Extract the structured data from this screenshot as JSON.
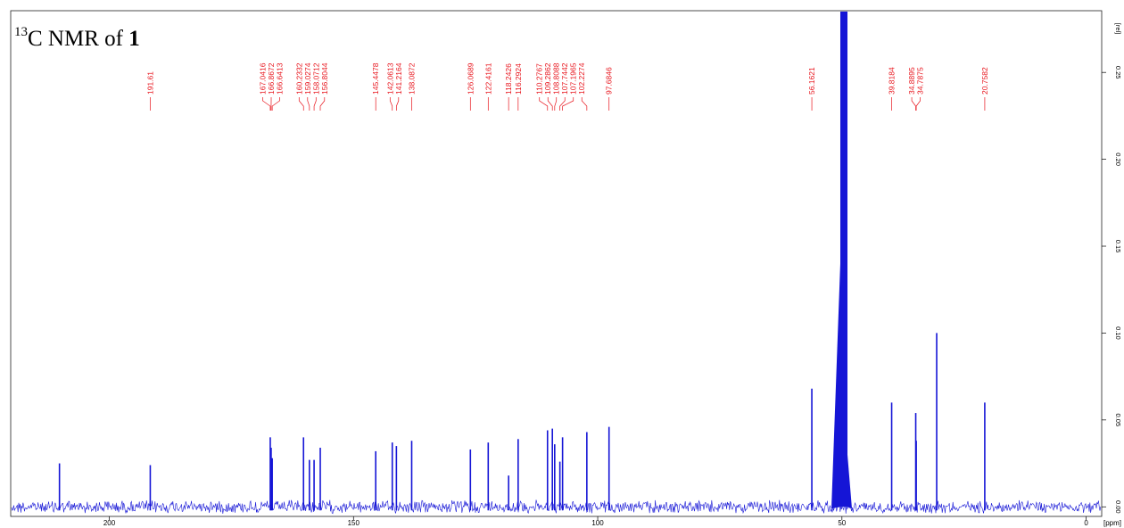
{
  "title": {
    "sup": "13",
    "main": "C NMR of ",
    "compound": "1"
  },
  "colors": {
    "spectrum": "#1515d6",
    "labels": "#e8141c",
    "axis": "#000000"
  },
  "chart_data": {
    "type": "line",
    "title": "13C NMR of 1",
    "xlabel": "[ppm]",
    "ylabel": "[rel]",
    "x_reversed": true,
    "xlim": [
      220,
      -3
    ],
    "ylim": [
      -0.005,
      0.285
    ],
    "x_ticks": [
      200,
      150,
      100,
      50,
      0
    ],
    "y_ticks": [
      0.0,
      0.05,
      0.1,
      0.15,
      0.2,
      0.25
    ],
    "y_tick_labels": [
      "0.00",
      "0.05",
      "0.10",
      "0.15",
      "0.20",
      "0.25"
    ],
    "grid": false,
    "peaks": [
      {
        "shift": 210.2,
        "height": 0.025
      },
      {
        "shift": 191.61,
        "height": 0.024,
        "label": "191.61"
      },
      {
        "shift": 167.0416,
        "height": 0.04,
        "label": "167.0416"
      },
      {
        "shift": 166.8672,
        "height": 0.034,
        "label": "166.8672"
      },
      {
        "shift": 166.6413,
        "height": 0.028,
        "label": "166.6413"
      },
      {
        "shift": 160.2332,
        "height": 0.04,
        "label": "160.2332"
      },
      {
        "shift": 159.0274,
        "height": 0.027,
        "label": "159.0274"
      },
      {
        "shift": 158.0712,
        "height": 0.027,
        "label": "158.0712"
      },
      {
        "shift": 156.8044,
        "height": 0.034,
        "label": "156.8044"
      },
      {
        "shift": 145.4478,
        "height": 0.032,
        "label": "145.4478"
      },
      {
        "shift": 142.0613,
        "height": 0.037,
        "label": "142.0613"
      },
      {
        "shift": 141.2164,
        "height": 0.035,
        "label": "141.2164"
      },
      {
        "shift": 138.0872,
        "height": 0.038,
        "label": "138.0872"
      },
      {
        "shift": 126.0689,
        "height": 0.033,
        "label": "126.0689"
      },
      {
        "shift": 122.4161,
        "height": 0.037,
        "label": "122.4161"
      },
      {
        "shift": 118.2426,
        "height": 0.018,
        "label": "118.2426"
      },
      {
        "shift": 116.2924,
        "height": 0.039,
        "label": "116.2924"
      },
      {
        "shift": 110.2767,
        "height": 0.044,
        "label": "110.2767"
      },
      {
        "shift": 109.2862,
        "height": 0.045,
        "label": "109.2862"
      },
      {
        "shift": 108.8088,
        "height": 0.036,
        "label": "108.8088"
      },
      {
        "shift": 107.7442,
        "height": 0.026,
        "label": "107.7442"
      },
      {
        "shift": 107.1965,
        "height": 0.04,
        "label": "107.1965"
      },
      {
        "shift": 102.2274,
        "height": 0.043,
        "label": "102.2274"
      },
      {
        "shift": 97.6846,
        "height": 0.046,
        "label": "97.6846"
      },
      {
        "shift": 56.1621,
        "height": 0.068,
        "label": "56.1621"
      },
      {
        "shift": 49.6,
        "height": 0.285
      },
      {
        "shift": 39.8184,
        "height": 0.06,
        "label": "39.8184"
      },
      {
        "shift": 34.8895,
        "height": 0.054,
        "label": "34.8895"
      },
      {
        "shift": 34.7875,
        "height": 0.038,
        "label": "34.7875"
      },
      {
        "shift": 30.6,
        "height": 0.1
      },
      {
        "shift": 20.7582,
        "height": 0.06,
        "label": "20.7582"
      }
    ]
  }
}
